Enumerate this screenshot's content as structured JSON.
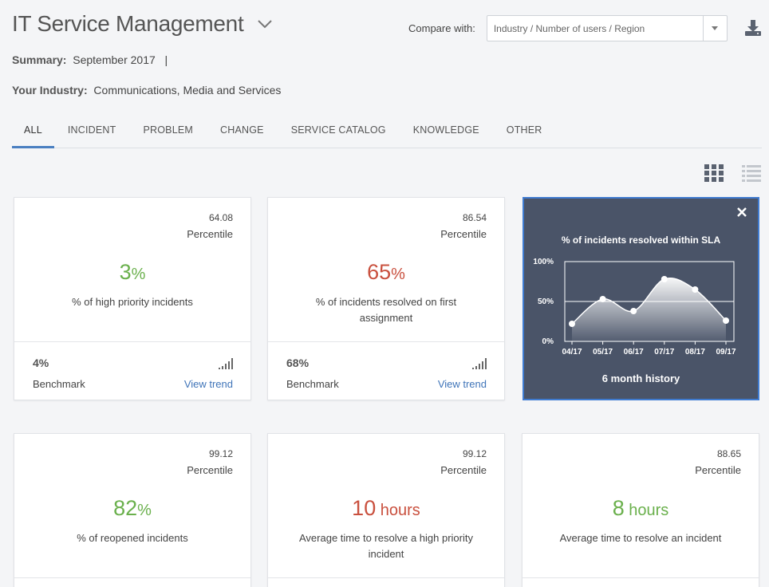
{
  "header": {
    "title": "IT Service Management",
    "compare_label": "Compare with:",
    "compare_placeholder": "Industry / Number of users / Region"
  },
  "summary": {
    "label": "Summary:",
    "value": "September 2017",
    "separator": "|"
  },
  "industry": {
    "label": "Your Industry:",
    "value": "Communications, Media and Services"
  },
  "tabs": [
    {
      "label": "ALL",
      "active": true
    },
    {
      "label": "INCIDENT"
    },
    {
      "label": "PROBLEM"
    },
    {
      "label": "CHANGE"
    },
    {
      "label": "SERVICE CATALOG"
    },
    {
      "label": "KNOWLEDGE"
    },
    {
      "label": "OTHER"
    }
  ],
  "cards": [
    {
      "percentile": "64.08",
      "percentile_label": "Percentile",
      "value": "3",
      "unit": "%",
      "color": "#6ab04c",
      "description": "% of high priority incidents",
      "benchmark": "4%",
      "benchmark_label": "Benchmark",
      "trend_label": "View trend"
    },
    {
      "percentile": "86.54",
      "percentile_label": "Percentile",
      "value": "65",
      "unit": "%",
      "color": "#c9503e",
      "description": "% of incidents resolved on first assignment",
      "benchmark": "68%",
      "benchmark_label": "Benchmark",
      "trend_label": "View trend"
    },
    {
      "percentile": "99.12",
      "percentile_label": "Percentile",
      "value": "82",
      "unit": "%",
      "color": "#6ab04c",
      "description": "% of reopened incidents"
    },
    {
      "percentile": "99.12",
      "percentile_label": "Percentile",
      "value": "10",
      "unit": " hours",
      "color": "#c9503e",
      "description": "Average time to resolve a high priority incident"
    },
    {
      "percentile": "88.65",
      "percentile_label": "Percentile",
      "value": "8",
      "unit": " hours",
      "color": "#6ab04c",
      "description": "Average time to resolve an incident"
    }
  ],
  "history": {
    "title": "% of incidents resolved within SLA",
    "footer": "6 month history"
  },
  "chart_data": {
    "type": "area",
    "title": "% of incidents resolved within SLA",
    "categories": [
      "04/17",
      "05/17",
      "06/17",
      "07/17",
      "08/17",
      "09/17"
    ],
    "values": [
      22,
      53,
      38,
      78,
      65,
      26
    ],
    "ylim": [
      0,
      100
    ],
    "yticks": [
      "0%",
      "50%",
      "100%"
    ],
    "grid": true
  },
  "colors": {
    "accent": "#3f74b8",
    "good": "#6ab04c",
    "bad": "#c9503e",
    "history_bg": "#4a5468"
  },
  "icons": {
    "title_toggle": "chevron-down-icon",
    "download": "download-icon",
    "grid_view": "grid-view-icon",
    "list_view": "list-view-icon",
    "close": "close-icon",
    "signal": "signal-bars-icon"
  }
}
